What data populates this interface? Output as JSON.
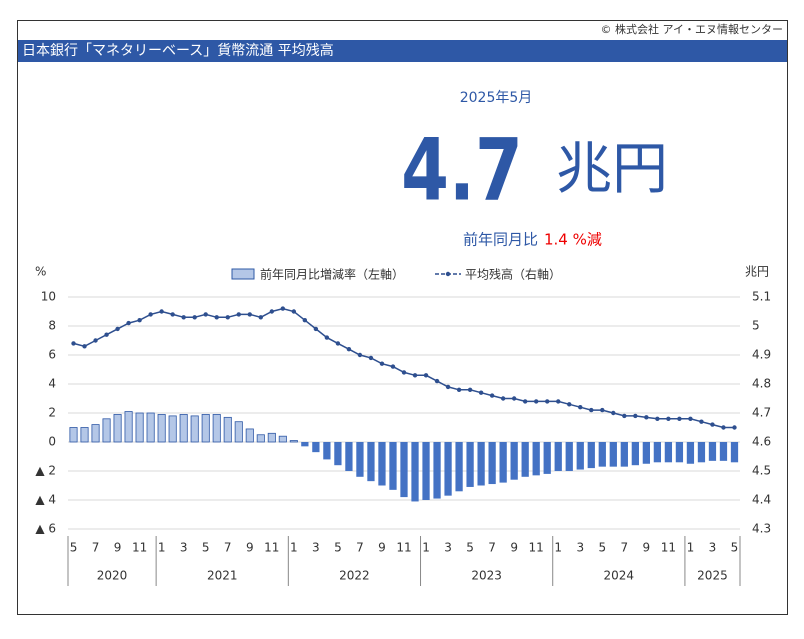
{
  "header": {
    "copyright": "© 株式会社 アイ・エヌ情報センター",
    "title": "日本銀行「マネタリーベース」貨幣流通 平均残高"
  },
  "headline": {
    "period": "2025年5月",
    "value": "4.7",
    "unit": "兆円",
    "yoy_label": "前年同月比",
    "yoy_value": "1.4 %減"
  },
  "chart_data": {
    "type": "bar_line",
    "y_unit": "%",
    "y2_unit": "兆円",
    "categories": [
      "5",
      null,
      "7",
      null,
      "9",
      null,
      "11",
      null,
      "1",
      null,
      "3",
      null,
      "5",
      null,
      "7",
      null,
      "9",
      null,
      "11",
      null,
      "1",
      null,
      "3",
      null,
      "5",
      null,
      "7",
      null,
      "9",
      null,
      "11",
      null,
      "1",
      null,
      "3",
      null,
      "5",
      null,
      "7",
      null,
      "9",
      null,
      "11",
      null,
      "1",
      null,
      "3",
      null,
      "5",
      null,
      "7",
      null,
      "9",
      null,
      "11",
      null,
      "1",
      null,
      "3",
      null,
      "5"
    ],
    "groups": [
      {
        "label": "2020",
        "size": 8
      },
      {
        "label": "2021",
        "size": 12
      },
      {
        "label": "2022",
        "size": 12
      },
      {
        "label": "2023",
        "size": 12
      },
      {
        "label": "2024",
        "size": 12
      },
      {
        "label": "2025",
        "size": 5
      }
    ],
    "series": [
      {
        "name": "前年同月比増減率（左軸）",
        "type": "bar",
        "color": "#b4c7e7",
        "negative_color": "#4472c4",
        "edge_color": "#2e58a6",
        "values": [
          1.0,
          1.0,
          1.2,
          1.6,
          1.9,
          2.1,
          2.0,
          2.0,
          1.9,
          1.8,
          1.9,
          1.8,
          1.9,
          1.9,
          1.7,
          1.4,
          0.9,
          0.5,
          0.6,
          0.4,
          0.1,
          -0.3,
          -0.7,
          -1.2,
          -1.6,
          -2.0,
          -2.4,
          -2.7,
          -3.0,
          -3.3,
          -3.8,
          -4.1,
          -4.0,
          -3.9,
          -3.7,
          -3.4,
          -3.1,
          -3.0,
          -2.9,
          -2.8,
          -2.6,
          -2.4,
          -2.3,
          -2.2,
          -2.0,
          -2.0,
          -1.9,
          -1.8,
          -1.7,
          -1.7,
          -1.7,
          -1.6,
          -1.5,
          -1.4,
          -1.4,
          -1.4,
          -1.5,
          -1.4,
          -1.3,
          -1.3,
          -1.4
        ]
      },
      {
        "name": "平均残高（右軸）",
        "type": "line",
        "axis": "y2",
        "color": "#2e4f8f",
        "values": [
          4.94,
          4.93,
          4.95,
          4.97,
          4.99,
          5.01,
          5.02,
          5.04,
          5.05,
          5.04,
          5.03,
          5.03,
          5.04,
          5.03,
          5.03,
          5.04,
          5.04,
          5.03,
          5.05,
          5.06,
          5.05,
          5.02,
          4.99,
          4.96,
          4.94,
          4.92,
          4.9,
          4.89,
          4.87,
          4.86,
          4.84,
          4.83,
          4.83,
          4.81,
          4.79,
          4.78,
          4.78,
          4.77,
          4.76,
          4.75,
          4.75,
          4.74,
          4.74,
          4.74,
          4.74,
          4.73,
          4.72,
          4.71,
          4.71,
          4.7,
          4.69,
          4.69,
          4.685,
          4.68,
          4.68,
          4.68,
          4.68,
          4.67,
          4.66,
          4.65,
          4.65
        ]
      }
    ],
    "ylim": [
      -6,
      10
    ],
    "yticks": [
      {
        "value": -6,
        "label": "▲ 6"
      },
      {
        "value": -4,
        "label": "▲ 4"
      },
      {
        "value": -2,
        "label": "▲ 2"
      },
      0,
      2,
      4,
      6,
      8,
      10
    ],
    "y2lim": [
      4.3,
      5.1
    ],
    "y2ticks": [
      4.3,
      4.4,
      4.5,
      4.6,
      4.7,
      4.8,
      4.9,
      5.0,
      5.1
    ],
    "grid": true
  }
}
